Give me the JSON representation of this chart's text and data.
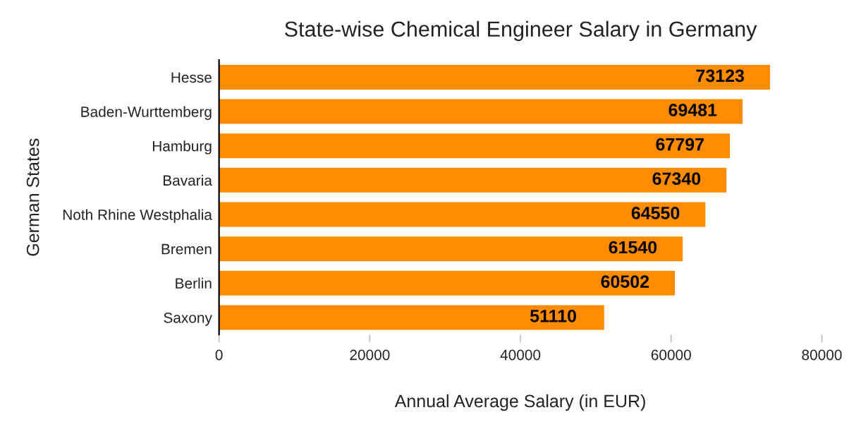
{
  "chart_data": {
    "type": "bar",
    "orientation": "horizontal",
    "title": "State-wise Chemical Engineer Salary in Germany",
    "xlabel": "Annual Average Salary (in EUR)",
    "ylabel": "German States",
    "categories": [
      "Hesse",
      "Baden-Wurttemberg",
      "Hamburg",
      "Bavaria",
      "Noth Rhine Westphalia",
      "Bremen",
      "Berlin",
      "Saxony"
    ],
    "values": [
      73123,
      69481,
      67797,
      67340,
      64550,
      61540,
      60502,
      51110
    ],
    "color": "#ff8c00",
    "data_labels": true,
    "xlim": [
      0,
      80000
    ],
    "xticks": [
      0,
      20000,
      40000,
      60000,
      80000
    ],
    "grid": false,
    "legend": false
  }
}
